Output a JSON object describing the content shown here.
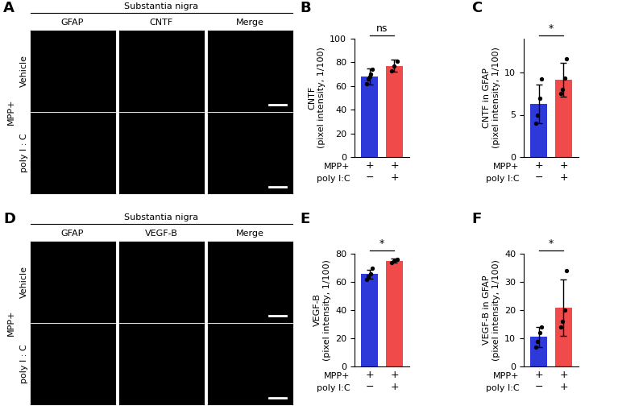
{
  "image_panels": [
    {
      "panel": "A",
      "header": "Substantia nigra",
      "columns": [
        "GFAP",
        "CNTF",
        "Merge"
      ],
      "rows": [
        "Vehicle",
        "poly I : C"
      ],
      "condition": "MPP+"
    },
    {
      "panel": "D",
      "header": "Substantia nigra",
      "columns": [
        "GFAP",
        "VEGF-B",
        "Merge"
      ],
      "rows": [
        "Vehicle",
        "poly I : C"
      ],
      "condition": "MPP+"
    }
  ],
  "chart_data": [
    {
      "panel": "B",
      "type": "bar",
      "y_label": "CNTF\n(pixel intensity, 1/100)",
      "categories": [
        "+\n−",
        "+\n+"
      ],
      "row_labels": [
        "MPP+",
        "poly I:C"
      ],
      "values": [
        68,
        77
      ],
      "errors": [
        7,
        5
      ],
      "points": [
        [
          62,
          66,
          68,
          70,
          74
        ],
        [
          73,
          77,
          81
        ]
      ],
      "colors": [
        "#2d39d9",
        "#f04a4a"
      ],
      "ylim": [
        0,
        100
      ],
      "yticks": [
        0,
        20,
        40,
        60,
        80,
        100
      ],
      "significance": "ns"
    },
    {
      "panel": "C",
      "type": "bar",
      "y_label": "CNTF in GFAP\n(pixel intensity, 1/100)",
      "categories": [
        "+\n−",
        "+\n+"
      ],
      "row_labels": [
        "MPP+",
        "poly I:C"
      ],
      "values": [
        6.3,
        9.1
      ],
      "errors": [
        2.3,
        2.0
      ],
      "points": [
        [
          4,
          5,
          7,
          9.2
        ],
        [
          7.5,
          8,
          9.3,
          11.6
        ]
      ],
      "colors": [
        "#2d39d9",
        "#f04a4a"
      ],
      "ylim": [
        0,
        14
      ],
      "yticks": [
        0,
        5,
        10
      ],
      "significance": "*"
    },
    {
      "panel": "E",
      "type": "bar",
      "y_label": "VEGF-B\n(pixel intensity, 1/100)",
      "categories": [
        "+\n−",
        "+\n+"
      ],
      "row_labels": [
        "MPP+",
        "poly I:C"
      ],
      "values": [
        65.5,
        75
      ],
      "errors": [
        3,
        1.5
      ],
      "points": [
        [
          62,
          64,
          66,
          70
        ],
        [
          74,
          75,
          76
        ]
      ],
      "colors": [
        "#2d39d9",
        "#f04a4a"
      ],
      "ylim": [
        0,
        80
      ],
      "yticks": [
        0,
        20,
        40,
        60,
        80
      ],
      "significance": "*"
    },
    {
      "panel": "F",
      "type": "bar",
      "y_label": "VEGF-B in GFAP\n(pixel intensity, 1/100)",
      "categories": [
        "+\n−",
        "+\n+"
      ],
      "row_labels": [
        "MPP+",
        "poly I:C"
      ],
      "values": [
        10.5,
        21
      ],
      "errors": [
        3.5,
        10
      ],
      "points": [
        [
          7,
          9,
          12,
          14
        ],
        [
          14,
          16,
          20,
          34
        ]
      ],
      "colors": [
        "#2d39d9",
        "#f04a4a"
      ],
      "ylim": [
        0,
        40
      ],
      "yticks": [
        0,
        10,
        20,
        30,
        40
      ],
      "significance": "*"
    }
  ]
}
